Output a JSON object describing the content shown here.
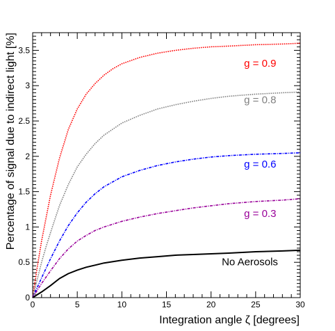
{
  "chart_data": {
    "type": "line",
    "xlabel": "Integration angle ζ [degrees]",
    "ylabel": "Percentage of signal due to indirect light [%]",
    "xlim": [
      0,
      30
    ],
    "ylim": [
      0,
      3.75
    ],
    "xticks": [
      {
        "value": 0,
        "label": "0"
      },
      {
        "value": 5,
        "label": "5"
      },
      {
        "value": 10,
        "label": "10"
      },
      {
        "value": 15,
        "label": "15"
      },
      {
        "value": 20,
        "label": "20"
      },
      {
        "value": 25,
        "label": "25"
      },
      {
        "value": 30,
        "label": "30"
      }
    ],
    "yticks": [
      {
        "value": 0,
        "label": "0"
      },
      {
        "value": 0.5,
        "label": "0.5"
      },
      {
        "value": 1,
        "label": "1"
      },
      {
        "value": 1.5,
        "label": "1.5"
      },
      {
        "value": 2,
        "label": "2"
      },
      {
        "value": 2.5,
        "label": "2.5"
      },
      {
        "value": 3,
        "label": "3"
      },
      {
        "value": 3.5,
        "label": "3.5"
      }
    ],
    "grid": false,
    "series": [
      {
        "name": "g = 0.9",
        "color": "#ff0000",
        "style": "dotted",
        "label_at": [
          23.7,
          3.27
        ],
        "points": [
          [
            0,
            0
          ],
          [
            0.5,
            0.42
          ],
          [
            1,
            0.8
          ],
          [
            1.5,
            1.13
          ],
          [
            2,
            1.45
          ],
          [
            3,
            1.97
          ],
          [
            4,
            2.38
          ],
          [
            5,
            2.67
          ],
          [
            6,
            2.88
          ],
          [
            7,
            3.03
          ],
          [
            8,
            3.15
          ],
          [
            9,
            3.24
          ],
          [
            10,
            3.31
          ],
          [
            12,
            3.4
          ],
          [
            14,
            3.46
          ],
          [
            16,
            3.5
          ],
          [
            18,
            3.53
          ],
          [
            20,
            3.55
          ],
          [
            22,
            3.56
          ],
          [
            25,
            3.58
          ],
          [
            28,
            3.59
          ],
          [
            30,
            3.6
          ]
        ]
      },
      {
        "name": "g = 0.8",
        "color": "#808080",
        "style": "dotted",
        "label_at": [
          23.7,
          2.75
        ],
        "points": [
          [
            0,
            0
          ],
          [
            0.5,
            0.25
          ],
          [
            1,
            0.5
          ],
          [
            1.5,
            0.72
          ],
          [
            2,
            0.92
          ],
          [
            3,
            1.3
          ],
          [
            4,
            1.6
          ],
          [
            5,
            1.85
          ],
          [
            6,
            2.03
          ],
          [
            7,
            2.18
          ],
          [
            8,
            2.3
          ],
          [
            10,
            2.47
          ],
          [
            12,
            2.58
          ],
          [
            14,
            2.67
          ],
          [
            16,
            2.73
          ],
          [
            18,
            2.78
          ],
          [
            20,
            2.82
          ],
          [
            22,
            2.85
          ],
          [
            25,
            2.88
          ],
          [
            28,
            2.9
          ],
          [
            30,
            2.91
          ]
        ]
      },
      {
        "name": "g = 0.6",
        "color": "#0000ff",
        "style": "dashdot",
        "label_at": [
          23.7,
          1.84
        ],
        "points": [
          [
            0,
            0
          ],
          [
            0.5,
            0.14
          ],
          [
            1,
            0.28
          ],
          [
            2,
            0.55
          ],
          [
            3,
            0.8
          ],
          [
            4,
            1.02
          ],
          [
            5,
            1.2
          ],
          [
            6,
            1.35
          ],
          [
            7,
            1.47
          ],
          [
            8,
            1.57
          ],
          [
            10,
            1.71
          ],
          [
            12,
            1.8
          ],
          [
            14,
            1.87
          ],
          [
            16,
            1.92
          ],
          [
            18,
            1.96
          ],
          [
            20,
            1.99
          ],
          [
            22,
            2.01
          ],
          [
            25,
            2.03
          ],
          [
            28,
            2.04
          ],
          [
            30,
            2.05
          ]
        ]
      },
      {
        "name": "g = 0.3",
        "color": "#990099",
        "style": "dashdot",
        "label_at": [
          23.7,
          1.14
        ],
        "points": [
          [
            0,
            0
          ],
          [
            0.5,
            0.1
          ],
          [
            1,
            0.2
          ],
          [
            2,
            0.38
          ],
          [
            3,
            0.55
          ],
          [
            4,
            0.69
          ],
          [
            5,
            0.8
          ],
          [
            6,
            0.88
          ],
          [
            7,
            0.95
          ],
          [
            8,
            1.0
          ],
          [
            10,
            1.08
          ],
          [
            12,
            1.14
          ],
          [
            14,
            1.19
          ],
          [
            16,
            1.23
          ],
          [
            18,
            1.27
          ],
          [
            20,
            1.3
          ],
          [
            22,
            1.33
          ],
          [
            25,
            1.36
          ],
          [
            28,
            1.38
          ],
          [
            30,
            1.4
          ]
        ]
      },
      {
        "name": "No Aerosols",
        "color": "#000000",
        "style": "solid",
        "label_at": [
          21.2,
          0.46
        ],
        "points": [
          [
            0,
            0
          ],
          [
            0.5,
            0.04
          ],
          [
            1,
            0.08
          ],
          [
            2,
            0.17
          ],
          [
            3,
            0.27
          ],
          [
            4,
            0.34
          ],
          [
            5,
            0.39
          ],
          [
            6,
            0.43
          ],
          [
            7,
            0.46
          ],
          [
            8,
            0.49
          ],
          [
            10,
            0.53
          ],
          [
            12,
            0.56
          ],
          [
            14,
            0.58
          ],
          [
            16,
            0.6
          ],
          [
            18,
            0.61
          ],
          [
            20,
            0.62
          ],
          [
            22,
            0.63
          ],
          [
            25,
            0.65
          ],
          [
            28,
            0.66
          ],
          [
            30,
            0.67
          ]
        ]
      }
    ]
  }
}
